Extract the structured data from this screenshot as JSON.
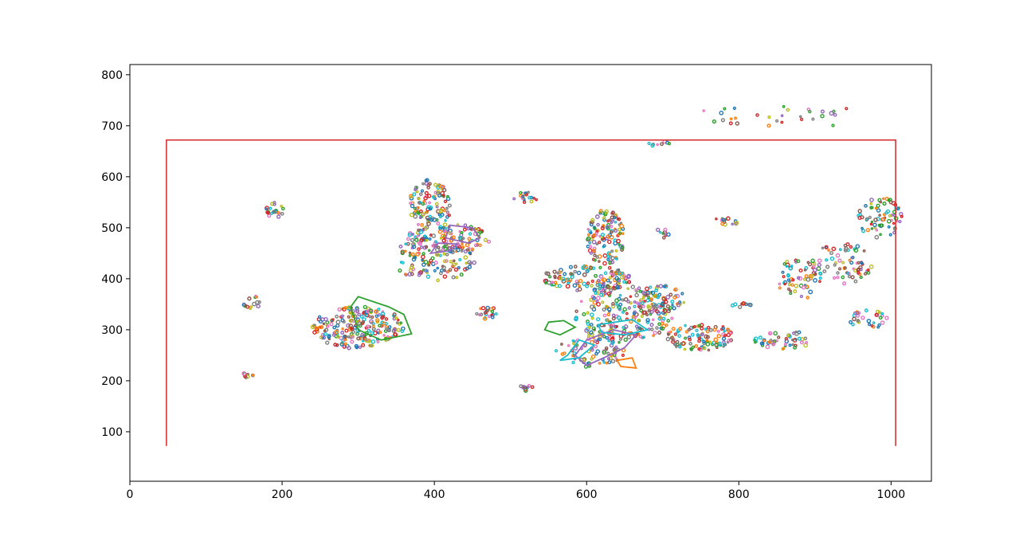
{
  "chart_data": {
    "type": "line",
    "title": "",
    "xlabel": "",
    "ylabel": "",
    "xlim": [
      0,
      1053
    ],
    "ylim": [
      3,
      820
    ],
    "x_ticks": [
      0,
      200,
      400,
      600,
      800,
      1000
    ],
    "y_ticks": [
      100,
      200,
      300,
      400,
      500,
      600,
      700,
      800
    ],
    "grid": false,
    "legend": "none",
    "border": {
      "color": "#d62728",
      "x": [
        48,
        48,
        1006,
        1006
      ],
      "y": [
        72,
        672,
        672,
        72
      ]
    },
    "palette": [
      "#1f77b4",
      "#ff7f0e",
      "#2ca02c",
      "#d62728",
      "#9467bd",
      "#8c564b",
      "#e377c2",
      "#7f7f7f",
      "#bcbd22",
      "#17becf"
    ],
    "clusters": [
      {
        "cx": 300,
        "cy": 305,
        "rx": 60,
        "ry": 42,
        "n": 230
      },
      {
        "cx": 400,
        "cy": 440,
        "rx": 55,
        "ry": 45,
        "n": 120
      },
      {
        "cx": 395,
        "cy": 545,
        "rx": 28,
        "ry": 50,
        "n": 110
      },
      {
        "cx": 420,
        "cy": 480,
        "rx": 55,
        "ry": 28,
        "n": 110
      },
      {
        "cx": 600,
        "cy": 400,
        "rx": 60,
        "ry": 25,
        "n": 130
      },
      {
        "cx": 625,
        "cy": 480,
        "rx": 25,
        "ry": 55,
        "n": 120
      },
      {
        "cx": 650,
        "cy": 330,
        "rx": 65,
        "ry": 55,
        "n": 210
      },
      {
        "cx": 605,
        "cy": 260,
        "rx": 45,
        "ry": 35,
        "n": 80
      },
      {
        "cx": 700,
        "cy": 360,
        "rx": 30,
        "ry": 30,
        "n": 60
      },
      {
        "cx": 750,
        "cy": 285,
        "rx": 45,
        "ry": 28,
        "n": 110
      },
      {
        "cx": 860,
        "cy": 280,
        "rx": 40,
        "ry": 18,
        "n": 50
      },
      {
        "cx": 880,
        "cy": 400,
        "rx": 30,
        "ry": 40,
        "n": 60
      },
      {
        "cx": 935,
        "cy": 430,
        "rx": 40,
        "ry": 40,
        "n": 70
      },
      {
        "cx": 985,
        "cy": 520,
        "rx": 30,
        "ry": 40,
        "n": 70
      },
      {
        "cx": 970,
        "cy": 320,
        "rx": 25,
        "ry": 18,
        "n": 30
      },
      {
        "cx": 470,
        "cy": 330,
        "rx": 15,
        "ry": 15,
        "n": 20
      },
      {
        "cx": 190,
        "cy": 535,
        "rx": 12,
        "ry": 15,
        "n": 20
      },
      {
        "cx": 160,
        "cy": 355,
        "rx": 12,
        "ry": 15,
        "n": 15
      },
      {
        "cx": 155,
        "cy": 210,
        "rx": 10,
        "ry": 5,
        "n": 8
      },
      {
        "cx": 520,
        "cy": 185,
        "rx": 10,
        "ry": 6,
        "n": 10
      },
      {
        "cx": 520,
        "cy": 555,
        "rx": 18,
        "ry": 15,
        "n": 18
      },
      {
        "cx": 785,
        "cy": 513,
        "rx": 20,
        "ry": 8,
        "n": 15
      },
      {
        "cx": 700,
        "cy": 490,
        "rx": 8,
        "ry": 12,
        "n": 10
      },
      {
        "cx": 695,
        "cy": 665,
        "rx": 15,
        "ry": 5,
        "n": 8
      },
      {
        "cx": 805,
        "cy": 348,
        "rx": 15,
        "ry": 5,
        "n": 10
      },
      {
        "cx": 870,
        "cy": 720,
        "rx": 130,
        "ry": 22,
        "n": 30
      }
    ],
    "polygons": [
      {
        "color": "#2ca02c",
        "x": [
          290,
          300,
          340,
          360,
          370,
          330,
          300
        ],
        "y": [
          345,
          365,
          345,
          330,
          292,
          280,
          300
        ]
      },
      {
        "color": "#9467bd",
        "x": [
          600,
          630,
          650,
          665,
          635,
          600,
          585
        ],
        "y": [
          230,
          250,
          265,
          290,
          300,
          280,
          250
        ]
      },
      {
        "color": "#17becf",
        "x": [
          575,
          590,
          610,
          590,
          565
        ],
        "y": [
          250,
          280,
          270,
          245,
          240
        ]
      },
      {
        "color": "#9467bd",
        "x": [
          420,
          450,
          460,
          445,
          415
        ],
        "y": [
          505,
          500,
          480,
          470,
          480
        ]
      },
      {
        "color": "#2ca02c",
        "x": [
          550,
          570,
          585,
          565,
          545
        ],
        "y": [
          315,
          318,
          305,
          290,
          300
        ]
      },
      {
        "color": "#ff7f0e",
        "x": [
          640,
          660,
          665,
          645
        ],
        "y": [
          240,
          245,
          225,
          228
        ]
      },
      {
        "color": "#9467bd",
        "x": [
          395,
          420,
          430,
          405
        ],
        "y": [
          450,
          455,
          468,
          470
        ]
      },
      {
        "color": "#17becf",
        "x": [
          615,
          660,
          680,
          650,
          620
        ],
        "y": [
          310,
          320,
          300,
          290,
          295
        ]
      }
    ]
  }
}
